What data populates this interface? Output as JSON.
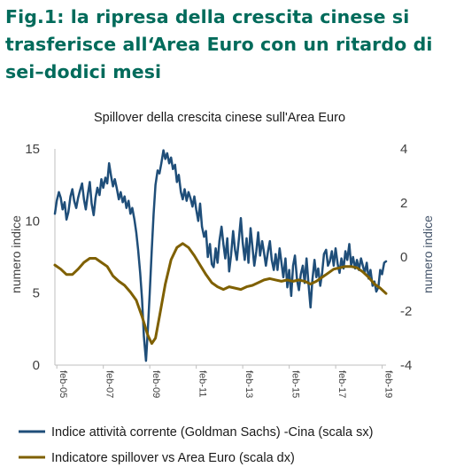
{
  "heading": {
    "line1": "Fig.1:   la ripresa della crescita cinese si",
    "line2": "trasferisce all‘Area Euro con un ritardo di",
    "line3": "sei–dodici mesi"
  },
  "colors": {
    "heading": "#006b5b",
    "series_left": "#1f4e79",
    "series_right": "#7f6000",
    "axis_title_right": "#44546a"
  },
  "chart_data": {
    "type": "line",
    "title": "Spillover della crescita cinese sull'Area Euro",
    "ylabel_left": "numero indice",
    "ylabel_right": "numero indice",
    "ylim_left": [
      0,
      15
    ],
    "ylim_right": [
      -4,
      4
    ],
    "yticks_left": [
      "0",
      "5",
      "10",
      "15"
    ],
    "yticks_right": [
      "-4",
      "-2",
      "0",
      "2",
      "4"
    ],
    "xlim": [
      2005.0,
      2019.25
    ],
    "xticks": [
      {
        "label": "feb-05",
        "x": 2005.083
      },
      {
        "label": "feb-07",
        "x": 2007.083
      },
      {
        "label": "feb-09",
        "x": 2009.083
      },
      {
        "label": "feb-11",
        "x": 2011.083
      },
      {
        "label": "feb-13",
        "x": 2013.083
      },
      {
        "label": "feb-15",
        "x": 2015.083
      },
      {
        "label": "feb-17",
        "x": 2017.083
      },
      {
        "label": "feb-19",
        "x": 2019.083
      }
    ],
    "grid": false,
    "legend_position": "bottom",
    "series": [
      {
        "name": "Indice attività corrente (Goldman Sachs) -Cina (scala sx)",
        "axis": "left",
        "color": "#1f4e79",
        "points": [
          [
            2005.0,
            10.5
          ],
          [
            2005.08,
            11.4
          ],
          [
            2005.17,
            12.0
          ],
          [
            2005.25,
            11.6
          ],
          [
            2005.33,
            10.8
          ],
          [
            2005.42,
            11.3
          ],
          [
            2005.5,
            10.1
          ],
          [
            2005.58,
            10.6
          ],
          [
            2005.67,
            11.7
          ],
          [
            2005.75,
            12.2
          ],
          [
            2005.83,
            11.4
          ],
          [
            2005.92,
            10.9
          ],
          [
            2006.0,
            11.6
          ],
          [
            2006.08,
            12.1
          ],
          [
            2006.17,
            12.6
          ],
          [
            2006.25,
            11.5
          ],
          [
            2006.33,
            10.8
          ],
          [
            2006.42,
            11.9
          ],
          [
            2006.5,
            12.7
          ],
          [
            2006.58,
            11.2
          ],
          [
            2006.67,
            10.4
          ],
          [
            2006.75,
            11.6
          ],
          [
            2006.83,
            12.3
          ],
          [
            2006.92,
            11.8
          ],
          [
            2007.0,
            12.9
          ],
          [
            2007.08,
            12.3
          ],
          [
            2007.17,
            13.0
          ],
          [
            2007.25,
            12.6
          ],
          [
            2007.33,
            14.0
          ],
          [
            2007.42,
            13.1
          ],
          [
            2007.5,
            12.4
          ],
          [
            2007.58,
            12.9
          ],
          [
            2007.67,
            12.2
          ],
          [
            2007.75,
            11.5
          ],
          [
            2007.83,
            12.0
          ],
          [
            2007.92,
            11.3
          ],
          [
            2008.0,
            11.7
          ],
          [
            2008.08,
            10.9
          ],
          [
            2008.17,
            11.4
          ],
          [
            2008.25,
            10.5
          ],
          [
            2008.33,
            10.9
          ],
          [
            2008.42,
            10.1
          ],
          [
            2008.5,
            9.2
          ],
          [
            2008.58,
            8.0
          ],
          [
            2008.67,
            6.4
          ],
          [
            2008.75,
            4.6
          ],
          [
            2008.83,
            2.0
          ],
          [
            2008.92,
            0.3
          ],
          [
            2009.0,
            2.5
          ],
          [
            2009.08,
            5.0
          ],
          [
            2009.17,
            8.0
          ],
          [
            2009.25,
            10.5
          ],
          [
            2009.33,
            12.5
          ],
          [
            2009.42,
            13.5
          ],
          [
            2009.5,
            13.3
          ],
          [
            2009.58,
            14.0
          ],
          [
            2009.67,
            14.9
          ],
          [
            2009.75,
            14.3
          ],
          [
            2009.83,
            14.7
          ],
          [
            2009.92,
            14.0
          ],
          [
            2010.0,
            14.4
          ],
          [
            2010.08,
            13.6
          ],
          [
            2010.17,
            13.9
          ],
          [
            2010.25,
            12.7
          ],
          [
            2010.33,
            13.2
          ],
          [
            2010.42,
            12.0
          ],
          [
            2010.5,
            11.5
          ],
          [
            2010.58,
            12.2
          ],
          [
            2010.67,
            11.4
          ],
          [
            2010.75,
            12.0
          ],
          [
            2010.83,
            11.6
          ],
          [
            2010.92,
            11.0
          ],
          [
            2011.0,
            11.7
          ],
          [
            2011.08,
            10.8
          ],
          [
            2011.17,
            10.0
          ],
          [
            2011.25,
            11.2
          ],
          [
            2011.33,
            9.6
          ],
          [
            2011.42,
            8.9
          ],
          [
            2011.5,
            9.3
          ],
          [
            2011.58,
            7.5
          ],
          [
            2011.67,
            8.4
          ],
          [
            2011.75,
            7.0
          ],
          [
            2011.83,
            6.8
          ],
          [
            2011.92,
            8.1
          ],
          [
            2012.0,
            7.1
          ],
          [
            2012.08,
            8.6
          ],
          [
            2012.17,
            9.6
          ],
          [
            2012.25,
            8.4
          ],
          [
            2012.33,
            7.4
          ],
          [
            2012.42,
            8.8
          ],
          [
            2012.5,
            6.5
          ],
          [
            2012.58,
            7.6
          ],
          [
            2012.67,
            9.3
          ],
          [
            2012.75,
            8.0
          ],
          [
            2012.83,
            7.3
          ],
          [
            2012.92,
            8.8
          ],
          [
            2013.0,
            10.2
          ],
          [
            2013.08,
            8.5
          ],
          [
            2013.17,
            7.3
          ],
          [
            2013.25,
            8.8
          ],
          [
            2013.33,
            7.1
          ],
          [
            2013.42,
            9.5
          ],
          [
            2013.5,
            8.2
          ],
          [
            2013.58,
            6.9
          ],
          [
            2013.67,
            7.9
          ],
          [
            2013.75,
            9.2
          ],
          [
            2013.83,
            7.6
          ],
          [
            2013.92,
            8.6
          ],
          [
            2014.0,
            7.8
          ],
          [
            2014.08,
            6.9
          ],
          [
            2014.17,
            7.9
          ],
          [
            2014.25,
            8.6
          ],
          [
            2014.33,
            7.3
          ],
          [
            2014.42,
            6.6
          ],
          [
            2014.5,
            7.7
          ],
          [
            2014.58,
            6.6
          ],
          [
            2014.67,
            8.1
          ],
          [
            2014.75,
            7.1
          ],
          [
            2014.83,
            6.1
          ],
          [
            2014.92,
            7.4
          ],
          [
            2015.0,
            5.4
          ],
          [
            2015.08,
            6.6
          ],
          [
            2015.17,
            4.8
          ],
          [
            2015.25,
            6.9
          ],
          [
            2015.33,
            7.6
          ],
          [
            2015.42,
            5.9
          ],
          [
            2015.5,
            5.2
          ],
          [
            2015.58,
            6.3
          ],
          [
            2015.67,
            6.9
          ],
          [
            2015.75,
            5.7
          ],
          [
            2015.83,
            7.4
          ],
          [
            2015.92,
            5.5
          ],
          [
            2016.0,
            4.0
          ],
          [
            2016.08,
            5.9
          ],
          [
            2016.17,
            7.3
          ],
          [
            2016.25,
            6.1
          ],
          [
            2016.33,
            6.7
          ],
          [
            2016.42,
            5.5
          ],
          [
            2016.5,
            6.4
          ],
          [
            2016.58,
            7.7
          ],
          [
            2016.67,
            8.0
          ],
          [
            2016.75,
            6.9
          ],
          [
            2016.83,
            7.2
          ],
          [
            2016.92,
            7.9
          ],
          [
            2017.0,
            6.9
          ],
          [
            2017.08,
            8.1
          ],
          [
            2017.17,
            7.0
          ],
          [
            2017.25,
            6.4
          ],
          [
            2017.33,
            7.4
          ],
          [
            2017.42,
            6.7
          ],
          [
            2017.5,
            7.9
          ],
          [
            2017.58,
            7.3
          ],
          [
            2017.67,
            8.4
          ],
          [
            2017.75,
            6.9
          ],
          [
            2017.83,
            7.5
          ],
          [
            2017.92,
            6.7
          ],
          [
            2018.0,
            7.3
          ],
          [
            2018.08,
            6.6
          ],
          [
            2018.17,
            7.4
          ],
          [
            2018.25,
            6.9
          ],
          [
            2018.33,
            6.4
          ],
          [
            2018.42,
            7.1
          ],
          [
            2018.5,
            6.0
          ],
          [
            2018.58,
            6.6
          ],
          [
            2018.67,
            5.5
          ],
          [
            2018.75,
            5.8
          ],
          [
            2018.83,
            5.1
          ],
          [
            2018.92,
            5.4
          ],
          [
            2019.0,
            6.6
          ],
          [
            2019.08,
            6.3
          ],
          [
            2019.17,
            7.1
          ],
          [
            2019.25,
            7.2
          ]
        ]
      },
      {
        "name": "Indicatore spillover vs Area Euro (scala dx)",
        "axis": "right",
        "color": "#7f6000",
        "points": [
          [
            2005.0,
            -0.3
          ],
          [
            2005.25,
            -0.45
          ],
          [
            2005.5,
            -0.65
          ],
          [
            2005.75,
            -0.65
          ],
          [
            2006.0,
            -0.45
          ],
          [
            2006.25,
            -0.2
          ],
          [
            2006.5,
            -0.05
          ],
          [
            2006.75,
            -0.05
          ],
          [
            2007.0,
            -0.2
          ],
          [
            2007.25,
            -0.35
          ],
          [
            2007.5,
            -0.7
          ],
          [
            2007.75,
            -0.9
          ],
          [
            2008.0,
            -1.05
          ],
          [
            2008.25,
            -1.3
          ],
          [
            2008.5,
            -1.6
          ],
          [
            2008.75,
            -2.2
          ],
          [
            2009.0,
            -2.9
          ],
          [
            2009.17,
            -3.2
          ],
          [
            2009.33,
            -3.0
          ],
          [
            2009.5,
            -2.2
          ],
          [
            2009.75,
            -1.0
          ],
          [
            2010.0,
            -0.1
          ],
          [
            2010.25,
            0.35
          ],
          [
            2010.5,
            0.5
          ],
          [
            2010.75,
            0.35
          ],
          [
            2011.0,
            0.05
          ],
          [
            2011.25,
            -0.3
          ],
          [
            2011.5,
            -0.65
          ],
          [
            2011.75,
            -0.95
          ],
          [
            2012.0,
            -1.1
          ],
          [
            2012.25,
            -1.2
          ],
          [
            2012.5,
            -1.1
          ],
          [
            2012.75,
            -1.15
          ],
          [
            2013.0,
            -1.2
          ],
          [
            2013.25,
            -1.1
          ],
          [
            2013.5,
            -1.05
          ],
          [
            2013.75,
            -0.95
          ],
          [
            2014.0,
            -0.85
          ],
          [
            2014.25,
            -0.8
          ],
          [
            2014.5,
            -0.85
          ],
          [
            2014.75,
            -0.9
          ],
          [
            2015.0,
            -0.85
          ],
          [
            2015.25,
            -0.9
          ],
          [
            2015.5,
            -0.85
          ],
          [
            2015.75,
            -0.9
          ],
          [
            2016.0,
            -1.0
          ],
          [
            2016.25,
            -0.9
          ],
          [
            2016.5,
            -0.75
          ],
          [
            2016.75,
            -0.6
          ],
          [
            2017.0,
            -0.45
          ],
          [
            2017.25,
            -0.4
          ],
          [
            2017.5,
            -0.35
          ],
          [
            2017.75,
            -0.35
          ],
          [
            2018.0,
            -0.4
          ],
          [
            2018.25,
            -0.55
          ],
          [
            2018.5,
            -0.75
          ],
          [
            2018.75,
            -1.0
          ],
          [
            2019.0,
            -1.15
          ],
          [
            2019.25,
            -1.35
          ]
        ]
      }
    ]
  }
}
